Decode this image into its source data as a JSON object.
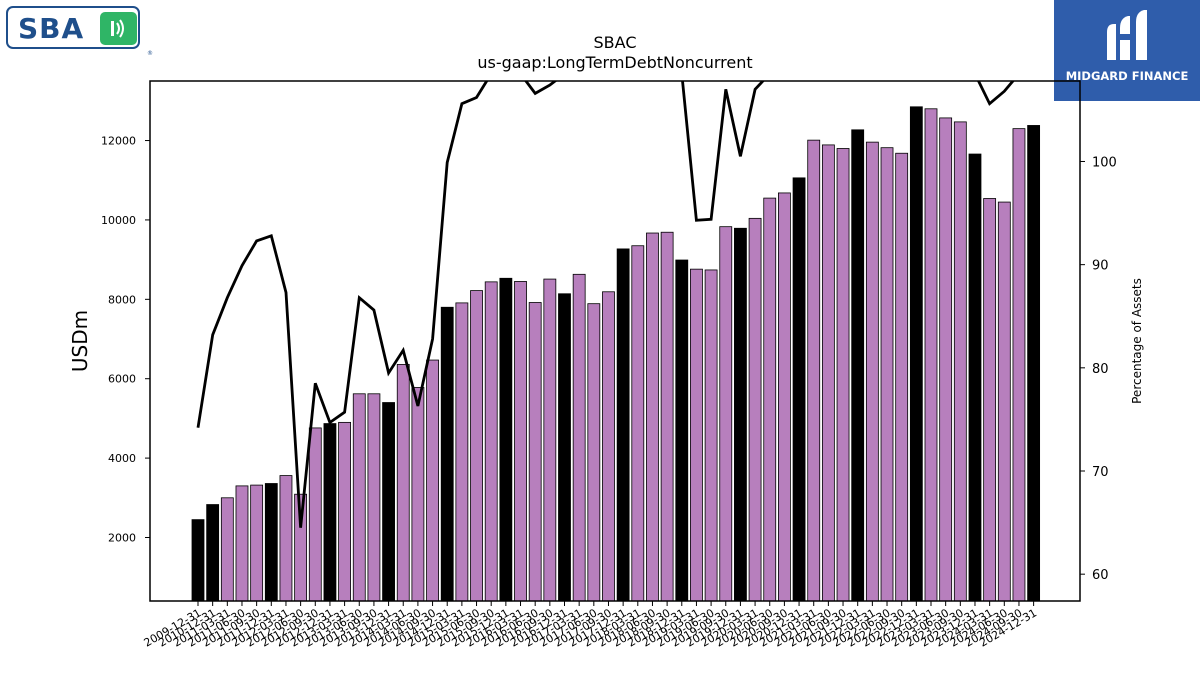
{
  "logos": {
    "sba": "SBA",
    "midgard": "MIDGARD FINANCE"
  },
  "chart_data": {
    "type": "bar",
    "title": "SBAC",
    "subtitle": "us-gaap:LongTermDebtNoncurrent",
    "ylabel": "USDm",
    "y2label": "Percentage of Assets",
    "ylim": [
      400,
      13500
    ],
    "y2lim": [
      57.4,
      107.8
    ],
    "yticks": [
      2000,
      4000,
      6000,
      8000,
      10000,
      12000
    ],
    "y2ticks": [
      60,
      70,
      80,
      90,
      100
    ],
    "colors": {
      "annual": "#000000",
      "quarterly": "#b77fbd",
      "line": "#000000"
    },
    "categories": [
      "2009-12-31",
      "2010-12-31",
      "2011-03-31",
      "2011-06-30",
      "2011-09-30",
      "2011-12-31",
      "2012-03-31",
      "2012-06-30",
      "2012-09-30",
      "2012-12-31",
      "2013-03-31",
      "2013-06-30",
      "2013-09-30",
      "2013-12-31",
      "2014-03-31",
      "2014-06-30",
      "2014-09-30",
      "2014-12-31",
      "2015-03-31",
      "2015-06-30",
      "2015-09-30",
      "2015-12-31",
      "2016-03-31",
      "2016-06-30",
      "2016-09-30",
      "2016-12-31",
      "2017-03-31",
      "2017-06-30",
      "2017-09-30",
      "2017-12-31",
      "2018-03-31",
      "2018-06-30",
      "2018-09-30",
      "2018-12-31",
      "2019-03-31",
      "2019-06-30",
      "2019-09-30",
      "2019-12-31",
      "2020-03-31",
      "2020-06-30",
      "2020-09-30",
      "2020-12-31",
      "2021-03-31",
      "2021-06-30",
      "2021-09-30",
      "2021-12-31",
      "2022-03-31",
      "2022-06-30",
      "2022-09-30",
      "2022-12-31",
      "2023-03-31",
      "2023-06-30",
      "2023-09-30",
      "2023-12-31",
      "2024-03-31",
      "2024-06-30",
      "2024-09-30",
      "2024-12-31"
    ],
    "series": [
      {
        "values": [
          2450,
          2830,
          3000,
          3300,
          3320,
          3360,
          3560,
          3090,
          4760,
          4870,
          4900,
          5620,
          5620,
          5400,
          6360,
          5780,
          6470,
          7800,
          7910,
          8220,
          8440,
          8530,
          8450,
          7920,
          8510,
          8140,
          8630,
          7890,
          8190,
          9270,
          9350,
          9670,
          9690,
          8990,
          8760,
          8740,
          9830,
          9790,
          10040,
          10550,
          10680,
          11060,
          12010,
          11890,
          11800,
          12270,
          11960,
          11820,
          11680,
          12850,
          12800,
          12570,
          12470,
          11660,
          10540,
          10450,
          12300,
          12380
        ],
        "annual": [
          true,
          true,
          false,
          false,
          false,
          true,
          false,
          false,
          false,
          true,
          false,
          false,
          false,
          true,
          false,
          false,
          false,
          true,
          false,
          false,
          false,
          true,
          false,
          false,
          false,
          true,
          false,
          false,
          false,
          true,
          false,
          false,
          false,
          true,
          false,
          false,
          false,
          true,
          false,
          false,
          false,
          true,
          false,
          false,
          false,
          true,
          false,
          false,
          false,
          true,
          false,
          false,
          false,
          true,
          false,
          false,
          false,
          true
        ]
      },
      {
        "axis": "right",
        "values": [
          74.2,
          83.2,
          86.8,
          89.9,
          92.3,
          92.8,
          87.3,
          64.5,
          78.5,
          74.7,
          75.7,
          86.8,
          85.6,
          79.5,
          81.7,
          76.3,
          82.8,
          99.9,
          105.6,
          106.2,
          108.5,
          108.5,
          108.5,
          106.6,
          107.4,
          108.5,
          108.3,
          108.5,
          108.5,
          108.5,
          108.5,
          108.5,
          108.5,
          108.5,
          94.3,
          94.4,
          107.0,
          100.5,
          107.0,
          108.5,
          108.5,
          108.5,
          108.5,
          108.5,
          108.5,
          108.5,
          108.5,
          108.5,
          108.5,
          108.5,
          108.5,
          108.5,
          108.5,
          108.5,
          105.6,
          106.8,
          108.5,
          108.5
        ]
      }
    ]
  }
}
